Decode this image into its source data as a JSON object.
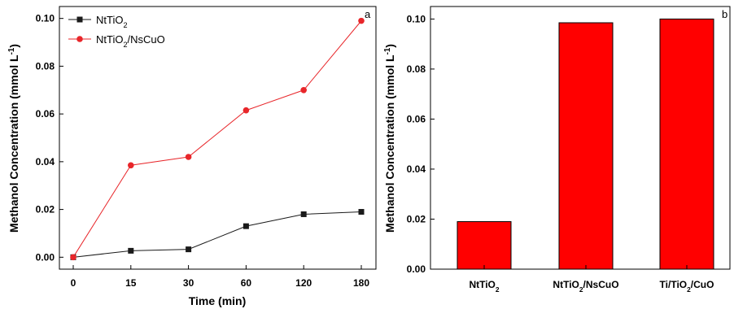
{
  "chart_data": [
    {
      "type": "line",
      "panel_label": "a",
      "x": [
        "0",
        "15",
        "30",
        "60",
        "120",
        "180"
      ],
      "xlabel": "Time (min)",
      "ylabel": {
        "text": "Methanol Concentration (mmol L",
        "sup": "-1",
        "tail": ")"
      },
      "ylim": [
        -0.005,
        0.105
      ],
      "yticks": [
        "0.00",
        "0.02",
        "0.04",
        "0.06",
        "0.08",
        "0.10"
      ],
      "legend_position": "top-left",
      "series": [
        {
          "name": {
            "main": "NtTiO",
            "sub": "2",
            "rest": ""
          },
          "color": "#1a1a1a",
          "marker": "square",
          "values": [
            0.0,
            0.0027,
            0.0033,
            0.013,
            0.018,
            0.019
          ]
        },
        {
          "name": {
            "main": "NtTiO",
            "sub": "2",
            "rest": "/NsCuO"
          },
          "color": "#e8262a",
          "marker": "circle",
          "values": [
            0.0,
            0.0385,
            0.042,
            0.0615,
            0.07,
            0.099
          ]
        }
      ]
    },
    {
      "type": "bar",
      "panel_label": "b",
      "categories": [
        {
          "main": "NtTiO",
          "sub": "2",
          "rest": ""
        },
        {
          "main": "NtTiO",
          "sub": "2",
          "rest": "/NsCuO"
        },
        {
          "main": "Ti/TiO",
          "sub": "2",
          "rest": "/CuO"
        }
      ],
      "values": [
        0.019,
        0.0985,
        0.1
      ],
      "bar_color": "#ff0000",
      "ylabel": {
        "text": "Methanol Concentration (mmol L",
        "sup": "-1",
        "tail": ")"
      },
      "ylim": [
        0.0,
        0.105
      ],
      "yticks": [
        "0.00",
        "0.02",
        "0.04",
        "0.06",
        "0.08",
        "0.10"
      ]
    }
  ]
}
